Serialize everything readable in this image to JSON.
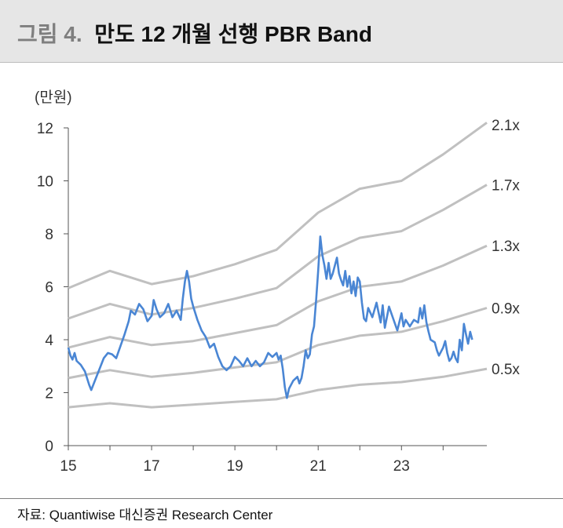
{
  "header": {
    "figure_label": "그림 4.",
    "title": "만도 12 개월 선행 PBR Band"
  },
  "source": "자료: Quantiwise 대신증권 Research Center",
  "colors": {
    "band": "#c0c0c0",
    "price": "#4a86d4",
    "header_bg": "#e6e6e6"
  },
  "chart_data": {
    "type": "line",
    "unit_label": "(만원)",
    "title": "",
    "xlabel": "",
    "ylabel": "",
    "xlim": [
      2015,
      2025.05
    ],
    "ylim": [
      0,
      12
    ],
    "x_ticks": [
      {
        "value": 2015,
        "label": "15"
      },
      {
        "value": 2017,
        "label": "17"
      },
      {
        "value": 2019,
        "label": "19"
      },
      {
        "value": 2021,
        "label": "21"
      },
      {
        "value": 2023,
        "label": "23"
      }
    ],
    "y_ticks": [
      0,
      2,
      4,
      6,
      8,
      10,
      12
    ],
    "grid": false,
    "bands": [
      {
        "name": "2.1x",
        "points": [
          [
            2015,
            5.95
          ],
          [
            2016,
            6.6
          ],
          [
            2017,
            6.1
          ],
          [
            2018,
            6.4
          ],
          [
            2019,
            6.85
          ],
          [
            2020,
            7.4
          ],
          [
            2021,
            8.8
          ],
          [
            2022,
            9.7
          ],
          [
            2023,
            10.0
          ],
          [
            2024,
            11.0
          ],
          [
            2025.05,
            12.2
          ]
        ]
      },
      {
        "name": "1.7x",
        "points": [
          [
            2015,
            4.8
          ],
          [
            2016,
            5.35
          ],
          [
            2017,
            4.95
          ],
          [
            2018,
            5.2
          ],
          [
            2019,
            5.55
          ],
          [
            2020,
            5.95
          ],
          [
            2021,
            7.15
          ],
          [
            2022,
            7.85
          ],
          [
            2023,
            8.1
          ],
          [
            2024,
            8.9
          ],
          [
            2025.05,
            9.85
          ]
        ]
      },
      {
        "name": "1.3x",
        "points": [
          [
            2015,
            3.7
          ],
          [
            2016,
            4.1
          ],
          [
            2017,
            3.8
          ],
          [
            2018,
            3.95
          ],
          [
            2019,
            4.25
          ],
          [
            2020,
            4.55
          ],
          [
            2021,
            5.45
          ],
          [
            2022,
            6.0
          ],
          [
            2023,
            6.2
          ],
          [
            2024,
            6.8
          ],
          [
            2025.05,
            7.55
          ]
        ]
      },
      {
        "name": "0.9x",
        "points": [
          [
            2015,
            2.55
          ],
          [
            2016,
            2.85
          ],
          [
            2017,
            2.6
          ],
          [
            2018,
            2.75
          ],
          [
            2019,
            2.95
          ],
          [
            2020,
            3.15
          ],
          [
            2021,
            3.8
          ],
          [
            2022,
            4.15
          ],
          [
            2023,
            4.3
          ],
          [
            2024,
            4.7
          ],
          [
            2025.05,
            5.2
          ]
        ]
      },
      {
        "name": "0.5x",
        "points": [
          [
            2015,
            1.45
          ],
          [
            2016,
            1.6
          ],
          [
            2017,
            1.45
          ],
          [
            2018,
            1.55
          ],
          [
            2019,
            1.65
          ],
          [
            2020,
            1.75
          ],
          [
            2021,
            2.1
          ],
          [
            2022,
            2.3
          ],
          [
            2023,
            2.4
          ],
          [
            2024,
            2.6
          ],
          [
            2025.05,
            2.9
          ]
        ]
      }
    ],
    "series": [
      {
        "points": [
          [
            2015.0,
            3.7
          ],
          [
            2015.05,
            3.4
          ],
          [
            2015.1,
            3.25
          ],
          [
            2015.15,
            3.5
          ],
          [
            2015.2,
            3.2
          ],
          [
            2015.3,
            3.05
          ],
          [
            2015.4,
            2.8
          ],
          [
            2015.5,
            2.3
          ],
          [
            2015.55,
            2.1
          ],
          [
            2015.65,
            2.5
          ],
          [
            2015.75,
            2.9
          ],
          [
            2015.85,
            3.3
          ],
          [
            2015.95,
            3.5
          ],
          [
            2016.05,
            3.45
          ],
          [
            2016.15,
            3.3
          ],
          [
            2016.25,
            3.75
          ],
          [
            2016.35,
            4.2
          ],
          [
            2016.45,
            4.7
          ],
          [
            2016.5,
            5.1
          ],
          [
            2016.6,
            4.95
          ],
          [
            2016.7,
            5.35
          ],
          [
            2016.8,
            5.15
          ],
          [
            2016.9,
            4.7
          ],
          [
            2017.0,
            4.9
          ],
          [
            2017.05,
            5.5
          ],
          [
            2017.12,
            5.15
          ],
          [
            2017.2,
            4.85
          ],
          [
            2017.3,
            5.0
          ],
          [
            2017.4,
            5.35
          ],
          [
            2017.5,
            4.85
          ],
          [
            2017.6,
            5.1
          ],
          [
            2017.7,
            4.75
          ],
          [
            2017.75,
            5.55
          ],
          [
            2017.8,
            6.2
          ],
          [
            2017.85,
            6.6
          ],
          [
            2017.9,
            6.2
          ],
          [
            2017.95,
            5.55
          ],
          [
            2018.0,
            5.25
          ],
          [
            2018.1,
            4.75
          ],
          [
            2018.2,
            4.35
          ],
          [
            2018.3,
            4.1
          ],
          [
            2018.4,
            3.7
          ],
          [
            2018.5,
            3.85
          ],
          [
            2018.6,
            3.35
          ],
          [
            2018.7,
            3.0
          ],
          [
            2018.8,
            2.85
          ],
          [
            2018.9,
            3.0
          ],
          [
            2019.0,
            3.35
          ],
          [
            2019.1,
            3.2
          ],
          [
            2019.2,
            3.0
          ],
          [
            2019.3,
            3.3
          ],
          [
            2019.4,
            3.0
          ],
          [
            2019.5,
            3.2
          ],
          [
            2019.6,
            3.0
          ],
          [
            2019.7,
            3.15
          ],
          [
            2019.8,
            3.5
          ],
          [
            2019.9,
            3.35
          ],
          [
            2020.0,
            3.5
          ],
          [
            2020.05,
            3.25
          ],
          [
            2020.1,
            3.4
          ],
          [
            2020.15,
            2.9
          ],
          [
            2020.2,
            2.2
          ],
          [
            2020.25,
            1.8
          ],
          [
            2020.3,
            2.15
          ],
          [
            2020.4,
            2.45
          ],
          [
            2020.5,
            2.6
          ],
          [
            2020.55,
            2.35
          ],
          [
            2020.6,
            2.55
          ],
          [
            2020.65,
            3.0
          ],
          [
            2020.7,
            3.6
          ],
          [
            2020.75,
            3.3
          ],
          [
            2020.8,
            3.45
          ],
          [
            2020.85,
            4.2
          ],
          [
            2020.9,
            4.5
          ],
          [
            2020.95,
            5.5
          ],
          [
            2021.0,
            6.6
          ],
          [
            2021.05,
            7.9
          ],
          [
            2021.1,
            7.2
          ],
          [
            2021.15,
            6.8
          ],
          [
            2021.2,
            6.3
          ],
          [
            2021.25,
            6.9
          ],
          [
            2021.3,
            6.3
          ],
          [
            2021.35,
            6.5
          ],
          [
            2021.45,
            7.1
          ],
          [
            2021.5,
            6.5
          ],
          [
            2021.55,
            6.25
          ],
          [
            2021.6,
            6.05
          ],
          [
            2021.65,
            6.6
          ],
          [
            2021.7,
            6.0
          ],
          [
            2021.75,
            6.4
          ],
          [
            2021.8,
            5.75
          ],
          [
            2021.85,
            6.2
          ],
          [
            2021.9,
            5.65
          ],
          [
            2021.95,
            6.35
          ],
          [
            2022.0,
            6.2
          ],
          [
            2022.05,
            5.4
          ],
          [
            2022.1,
            4.8
          ],
          [
            2022.15,
            4.7
          ],
          [
            2022.2,
            5.2
          ],
          [
            2022.3,
            4.85
          ],
          [
            2022.4,
            5.4
          ],
          [
            2022.5,
            4.65
          ],
          [
            2022.55,
            5.3
          ],
          [
            2022.6,
            4.45
          ],
          [
            2022.7,
            5.25
          ],
          [
            2022.8,
            4.8
          ],
          [
            2022.9,
            4.35
          ],
          [
            2023.0,
            5.0
          ],
          [
            2023.05,
            4.5
          ],
          [
            2023.1,
            4.75
          ],
          [
            2023.2,
            4.5
          ],
          [
            2023.3,
            4.75
          ],
          [
            2023.4,
            4.65
          ],
          [
            2023.45,
            5.2
          ],
          [
            2023.5,
            4.8
          ],
          [
            2023.55,
            5.3
          ],
          [
            2023.6,
            4.65
          ],
          [
            2023.65,
            4.3
          ],
          [
            2023.7,
            4.0
          ],
          [
            2023.8,
            3.9
          ],
          [
            2023.85,
            3.6
          ],
          [
            2023.9,
            3.4
          ],
          [
            2024.0,
            3.7
          ],
          [
            2024.05,
            3.95
          ],
          [
            2024.1,
            3.5
          ],
          [
            2024.15,
            3.2
          ],
          [
            2024.2,
            3.3
          ],
          [
            2024.25,
            3.55
          ],
          [
            2024.3,
            3.3
          ],
          [
            2024.35,
            3.15
          ],
          [
            2024.4,
            4.0
          ],
          [
            2024.45,
            3.6
          ],
          [
            2024.5,
            4.6
          ],
          [
            2024.55,
            4.2
          ],
          [
            2024.6,
            3.85
          ],
          [
            2024.65,
            4.3
          ],
          [
            2024.7,
            4.0
          ]
        ]
      }
    ]
  }
}
